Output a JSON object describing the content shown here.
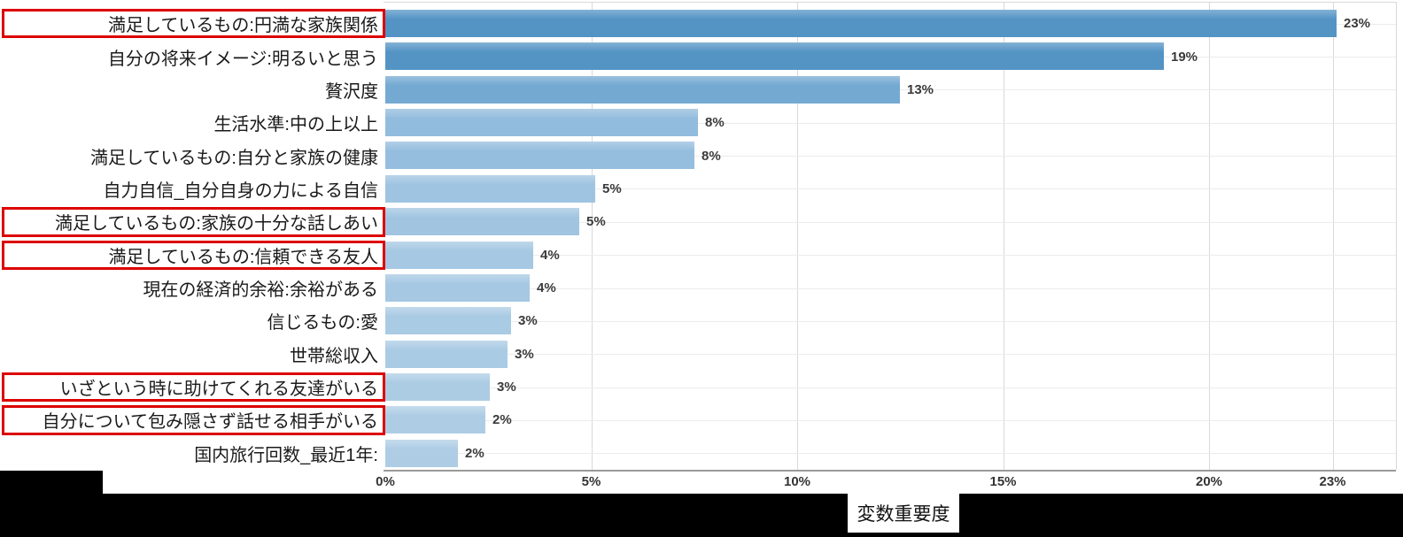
{
  "chart_data": {
    "type": "bar",
    "orientation": "horizontal",
    "title": "",
    "xlabel": "変数重要度",
    "ylabel": "",
    "categories": [
      "満足しているもの:円満な家族関係",
      "自分の将来イメージ:明るいと思う",
      "贅沢度",
      "生活水準:中の上以上",
      "満足しているもの:自分と家族の健康",
      "自力自信_自分自身の力による自信",
      "満足しているもの:家族の十分な話しあい",
      "満足しているもの:信頼できる友人",
      "現在の経済的余裕:余裕がある",
      "信じるもの:愛",
      "世帯総収入",
      "いざという時に助けてくれる友達がいる",
      "自分について包み隠さず話せる相手がいる",
      "国内旅行回数_最近1年:"
    ],
    "values": [
      23,
      19,
      13,
      8,
      8,
      5,
      5,
      4,
      4,
      3,
      3,
      3,
      2,
      2
    ],
    "value_labels": [
      "23%",
      "19%",
      "13%",
      "8%",
      "8%",
      "5%",
      "5%",
      "4%",
      "4%",
      "3%",
      "3%",
      "3%",
      "2%",
      "2%"
    ],
    "values_precise_pct": [
      23.1,
      18.9,
      12.5,
      7.6,
      7.5,
      5.1,
      4.7,
      3.6,
      3.5,
      3.05,
      2.97,
      2.54,
      2.43,
      1.76
    ],
    "highlighted_rows": [
      0,
      6,
      7,
      11,
      12
    ],
    "bar_colors": [
      "#5494c5",
      "#5494c5",
      "#74a9d2",
      "#92bcdd",
      "#94bdde",
      "#9fc4e1",
      "#a1c5e1",
      "#a6c8e2",
      "#a6c8e2",
      "#aacbe4",
      "#aacbe4",
      "#accce4",
      "#aecde5",
      "#aecde5"
    ],
    "x_axis": {
      "ticks": [
        {
          "label": "0%",
          "value": 0
        },
        {
          "label": "5%",
          "value": 5
        },
        {
          "label": "10%",
          "value": 10
        },
        {
          "label": "15%",
          "value": 15
        },
        {
          "label": "20%",
          "value": 20
        },
        {
          "label": "23%",
          "value": 23
        }
      ],
      "min": 0,
      "max": 23
    },
    "grid": true,
    "legend": false
  },
  "colors": {
    "highlight_box": "#dd0000",
    "grid": "#d9d9d9",
    "axis_line": "#9a9a9a",
    "redaction": "#000000",
    "background": "#ffffff"
  }
}
